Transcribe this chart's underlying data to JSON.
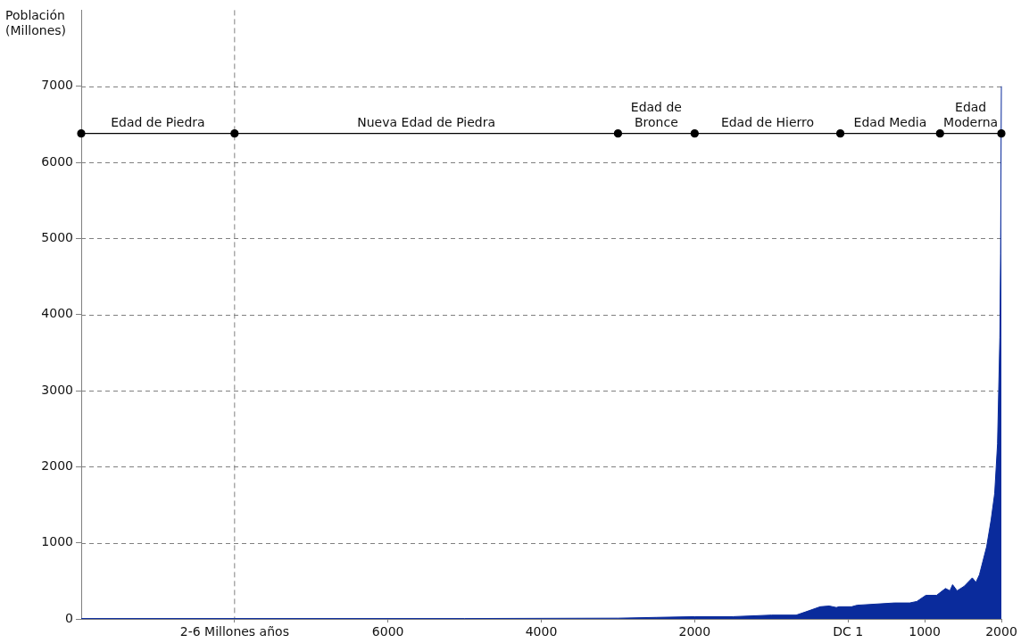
{
  "chart_data": {
    "type": "area",
    "ylabel": "Población\n(Millones)",
    "xlim": [
      -10000,
      2000
    ],
    "ylim": [
      0,
      8000
    ],
    "xticks": [
      {
        "value": -8000,
        "label": "2-6 Millones años"
      },
      {
        "value": -6000,
        "label": "6000"
      },
      {
        "value": -4000,
        "label": "4000"
      },
      {
        "value": -2000,
        "label": "2000"
      },
      {
        "value": 0,
        "label": "DC 1"
      },
      1000,
      2000
    ],
    "yticks": [
      0,
      1000,
      2000,
      3000,
      4000,
      5000,
      6000,
      7000
    ],
    "grid": "y",
    "legend": false,
    "marker": "none",
    "series": [
      {
        "type": "area",
        "color": "#0a2b9c",
        "x": [
          -10000,
          -8000,
          -5000,
          -3000,
          -2500,
          -2000,
          -1500,
          -1000,
          -676,
          -560,
          -362,
          -245,
          -152,
          -117,
          47,
          117,
          606,
          805,
          898,
          1015,
          1155,
          1271,
          1329,
          1364,
          1423,
          1516,
          1621,
          1668,
          1714,
          1808,
          1866,
          1913,
          1950,
          1965,
          1980,
          1990,
          2000
        ],
        "values": [
          5,
          5,
          5,
          10,
          20,
          30,
          30,
          50,
          50,
          90,
          160,
          170,
          150,
          160,
          160,
          180,
          210,
          210,
          230,
          310,
          310,
          400,
          370,
          450,
          370,
          430,
          540,
          480,
          580,
          950,
          1300,
          1650,
          2300,
          3000,
          3700,
          4800,
          7000
        ]
      },
      {
        "type": "line",
        "color": "#000000",
        "marker": "circle",
        "x": [
          -10000,
          -8000,
          -3000,
          -2000,
          -100,
          1200,
          2000
        ],
        "values": [
          6380,
          6380,
          6380,
          6380,
          6380,
          6380,
          6380
        ]
      }
    ],
    "ref_lines": [
      {
        "axis": "x",
        "value": -8000,
        "color": "#808080",
        "line_style": "dashed"
      }
    ],
    "annotations": [
      {
        "text": "Edad de Piedra",
        "x": -9000,
        "y": 6380
      },
      {
        "text": "Nueva Edad de Piedra",
        "x": -5500,
        "y": 6380
      },
      {
        "text": "Edad de\nBronce",
        "x": -2500,
        "y": 6380
      },
      {
        "text": "Edad de Hierro",
        "x": -1050,
        "y": 6380
      },
      {
        "text": "Edad Media",
        "x": 550,
        "y": 6380
      },
      {
        "text": "Edad\nModerna",
        "x": 1600,
        "y": 6380
      }
    ]
  }
}
